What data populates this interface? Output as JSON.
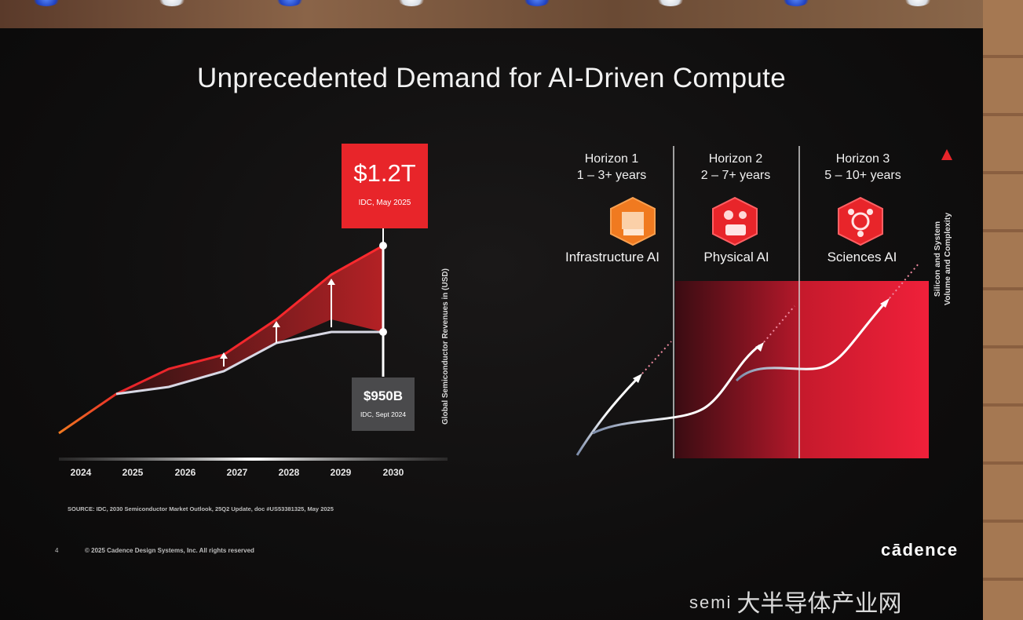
{
  "slide": {
    "title": "Unprecedented Demand for AI-Driven Compute",
    "page_number": "4",
    "copyright": "© 2025 Cadence Design Systems, Inc. All rights reserved",
    "logo": "cādence",
    "source": "SOURCE: IDC, 2030 Semiconductor Market Outlook, 25Q2 Update, doc #US53381325, May 2025"
  },
  "left_chart": {
    "years": [
      "2024",
      "2025",
      "2026",
      "2027",
      "2028",
      "2029",
      "2030"
    ],
    "ylabel": "Global Semiconductor Revenues in (USD)",
    "callout_high": {
      "value": "$1.2T",
      "source": "IDC, May 2025"
    },
    "callout_low": {
      "value": "$950B",
      "source": "IDC, Sept 2024"
    }
  },
  "right_diagram": {
    "horizons": [
      {
        "name": "Horizon 1",
        "years": "1 – 3+ years",
        "label": "Infrastructure AI",
        "icon": "server-icon"
      },
      {
        "name": "Horizon 2",
        "years": "2 – 7+ years",
        "label": "Physical AI",
        "icon": "robot-icon"
      },
      {
        "name": "Horizon 3",
        "years": "5 – 10+ years",
        "label": "Sciences AI",
        "icon": "molecule-icon"
      }
    ],
    "axis_label_line1": "Silicon and System",
    "axis_label_line2": "Volume and Complexity"
  },
  "colors": {
    "accent_red": "#e8252a",
    "accent_orange": "#f07a20",
    "callout_grey": "#4a4a4c"
  },
  "watermark": {
    "brand": "semi",
    "text": "大半导体产业网"
  }
}
